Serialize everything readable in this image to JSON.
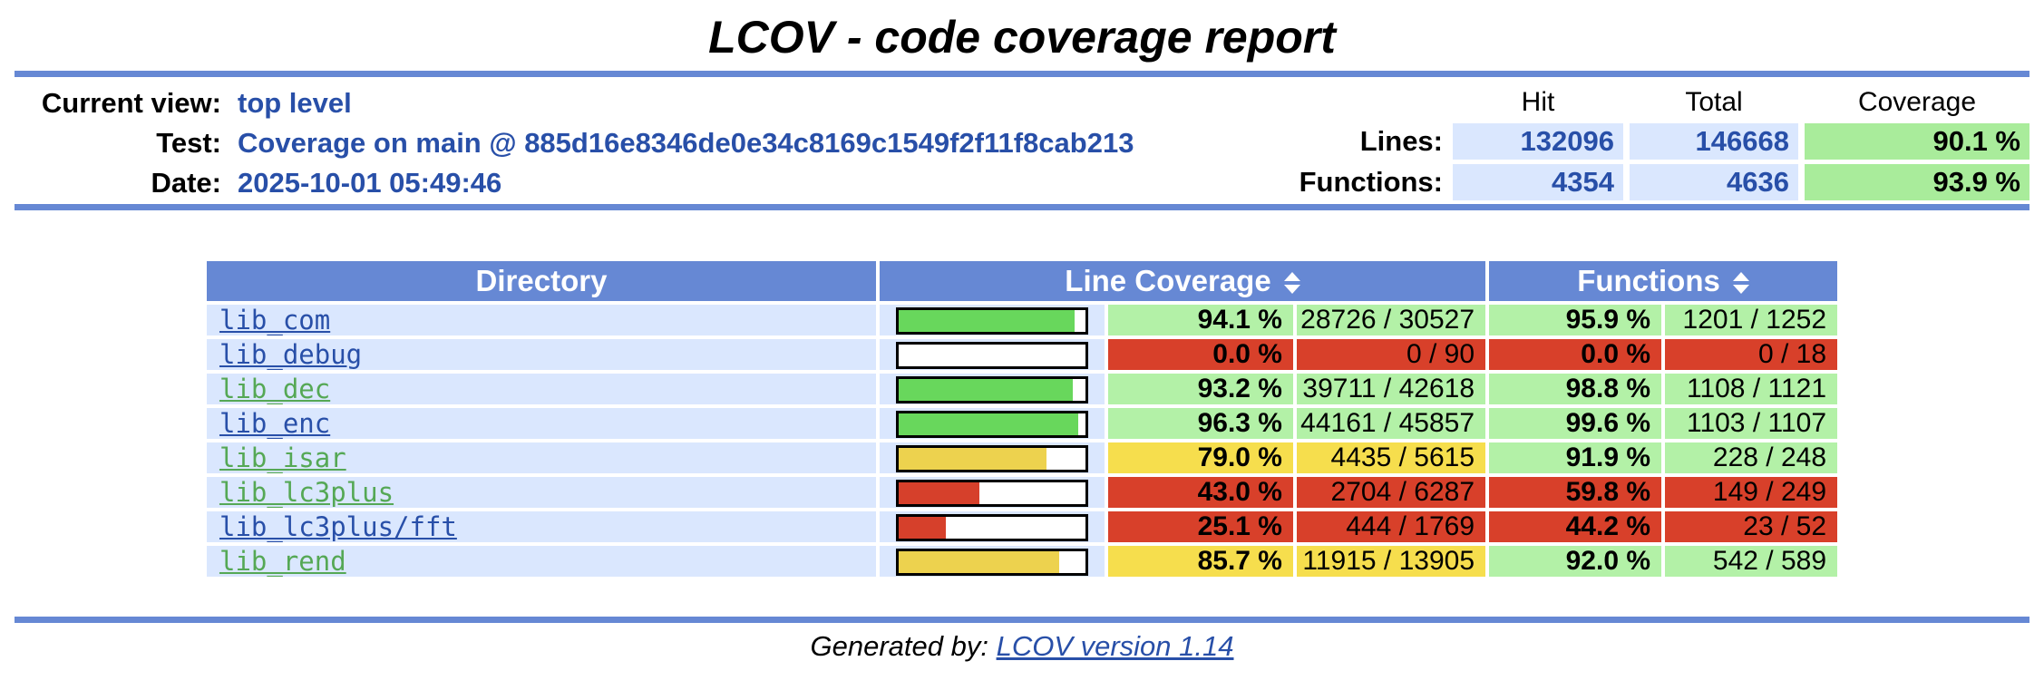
{
  "page": {
    "title": "LCOV - code coverage report"
  },
  "info": {
    "rows": [
      {
        "label": "Current view:",
        "value": "top level"
      },
      {
        "label": "Test:",
        "value": "Coverage on main @ 885d16e8346de0e34c8169c1549f2f11f8cab213"
      },
      {
        "label": "Date:",
        "value": "2025-10-01 05:49:46"
      }
    ],
    "summary": {
      "columns": [
        "Hit",
        "Total",
        "Coverage"
      ],
      "rows": [
        {
          "label": "Lines:",
          "hit": "132096",
          "total": "146668",
          "coverage": "90.1 %",
          "level": "high"
        },
        {
          "label": "Functions:",
          "hit": "4354",
          "total": "4636",
          "coverage": "93.9 %",
          "level": "high"
        }
      ]
    }
  },
  "table": {
    "headers": {
      "directory": "Directory",
      "line_coverage": "Line Coverage",
      "functions": "Functions"
    },
    "icons": {
      "sort": "sort-updown-icon"
    },
    "rows": [
      {
        "directory": "lib_com",
        "link_color": "navy",
        "bar_pct": 94.1,
        "line_level": "high",
        "line_pct": "94.1 %",
        "line_num": "28726 / 30527",
        "func_level": "high",
        "func_pct": "95.9 %",
        "func_num": "1201 / 1252"
      },
      {
        "directory": "lib_debug",
        "link_color": "navy",
        "bar_pct": 0,
        "line_level": "low",
        "line_pct": "0.0 %",
        "line_num": "0 / 90",
        "func_level": "low",
        "func_pct": "0.0 %",
        "func_num": "0 / 18"
      },
      {
        "directory": "lib_dec",
        "link_color": "green",
        "bar_pct": 93.2,
        "line_level": "high",
        "line_pct": "93.2 %",
        "line_num": "39711 / 42618",
        "func_level": "high",
        "func_pct": "98.8 %",
        "func_num": "1108 / 1121"
      },
      {
        "directory": "lib_enc",
        "link_color": "navy",
        "bar_pct": 96.3,
        "line_level": "high",
        "line_pct": "96.3 %",
        "line_num": "44161 / 45857",
        "func_level": "high",
        "func_pct": "99.6 %",
        "func_num": "1103 / 1107"
      },
      {
        "directory": "lib_isar",
        "link_color": "green",
        "bar_pct": 79.0,
        "line_level": "med",
        "line_pct": "79.0 %",
        "line_num": "4435 / 5615",
        "func_level": "high",
        "func_pct": "91.9 %",
        "func_num": "228 / 248"
      },
      {
        "directory": "lib_lc3plus",
        "link_color": "green",
        "bar_pct": 43.0,
        "line_level": "low",
        "line_pct": "43.0 %",
        "line_num": "2704 / 6287",
        "func_level": "low",
        "func_pct": "59.8 %",
        "func_num": "149 / 249"
      },
      {
        "directory": "lib_lc3plus/fft",
        "link_color": "navy",
        "bar_pct": 25.1,
        "line_level": "low",
        "line_pct": "25.1 %",
        "line_num": "444 / 1769",
        "func_level": "low",
        "func_pct": "44.2 %",
        "func_num": "23 / 52"
      },
      {
        "directory": "lib_rend",
        "link_color": "green",
        "bar_pct": 85.7,
        "line_level": "med",
        "line_pct": "85.7 %",
        "line_num": "11915 / 13905",
        "func_level": "high",
        "func_pct": "92.0 %",
        "func_num": "542 / 589"
      }
    ]
  },
  "footer": {
    "generated_by": "Generated by: ",
    "link_label": "LCOV version 1.14"
  },
  "colors": {
    "ruler_blue": "#6688D4",
    "cell_blue": "#DAE7FE",
    "cell_green": "#B3F1A7",
    "cell_yellow": "#F6DE4D",
    "cell_red": "#D8402A",
    "bar_green": "#68D75C",
    "bar_yellow": "#EDD24E",
    "bar_red": "#D6402B",
    "link_navy": "#284FA8",
    "link_green": "#55A855"
  }
}
